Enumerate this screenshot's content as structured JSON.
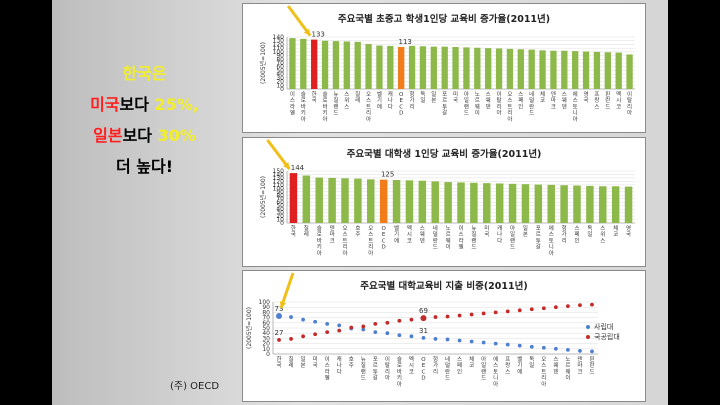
{
  "headline": {
    "line1": "한국은",
    "line2_a": "미국",
    "line2_b": "보다 ",
    "line2_c": "25%,",
    "line3_a": "일본",
    "line3_b": "보다 ",
    "line3_c": "30%",
    "line4": "더 높다!"
  },
  "source": "(주) OECD",
  "colors": {
    "bar": "#8db84a",
    "korea": "#e02020",
    "oecd": "#f07c1a",
    "private": "#4f7fd0",
    "public": "#c42a2a",
    "arrow": "#f0c018"
  },
  "chart_data": [
    {
      "type": "bar",
      "title": "주요국별 초중고 학생1인당 교육비 증가율(2011년)",
      "ylabel": "(2005년=100)",
      "ylim": [
        0,
        140
      ],
      "yticks": [
        0,
        10,
        20,
        30,
        40,
        50,
        60,
        70,
        80,
        90,
        100,
        110,
        120,
        130,
        140
      ],
      "categories": [
        "이스라엘",
        "슬로바키아",
        "한국",
        "슬로바키아",
        "뉴질랜드",
        "스위스",
        "칠레",
        "오스트리아",
        "벨기에",
        "캐나다",
        "OECD",
        "헝가리",
        "독일",
        "일본",
        "포르투갈",
        "미국",
        "아일랜드",
        "노르웨이",
        "스웨덴",
        "이탈리아",
        "오스트리아",
        "스페인",
        "네덜란드",
        "체코",
        "덴마크",
        "스웨덴",
        "에스토니아",
        "영국",
        "프랑스",
        "핀란드",
        "멕시코",
        "이탈리아"
      ],
      "values": [
        137,
        135,
        133,
        130,
        129,
        128,
        127,
        121,
        117,
        116,
        113,
        116,
        115,
        114,
        114,
        113,
        112,
        111,
        110,
        109,
        108,
        107,
        106,
        104,
        103,
        103,
        102,
        101,
        100,
        99,
        98,
        93
      ],
      "highlight": {
        "korea": 2,
        "oecd": 10
      },
      "data_labels": [
        {
          "index": 2,
          "text": "133"
        },
        {
          "index": 10,
          "text": "113"
        }
      ]
    },
    {
      "type": "bar",
      "title": "주요국별 대학생 1인당 교육비 증가율(2011년)",
      "ylabel": "(2005년=100)",
      "ylim": [
        0,
        150
      ],
      "yticks": [
        0,
        10,
        20,
        30,
        40,
        50,
        60,
        70,
        80,
        90,
        100,
        110,
        120,
        130,
        140,
        150
      ],
      "categories": [
        "한국",
        "칠레",
        "슬로바키아",
        "덴마크",
        "오스트리아",
        "호주",
        "오스트리아",
        "OECD",
        "벨기에",
        "멕시코",
        "스웨덴",
        "네덜란드",
        "노르웨이",
        "이스라엘",
        "뉴질랜드",
        "미국",
        "캐나다",
        "아일랜드",
        "일본",
        "포르투갈",
        "에스토니아",
        "헝가리",
        "스페인",
        "독일",
        "스위스",
        "체코",
        "영국"
      ],
      "values": [
        144,
        137,
        131,
        130,
        129,
        128,
        126,
        125,
        124,
        123,
        122,
        120,
        118,
        117,
        116,
        115,
        114,
        113,
        112,
        111,
        110,
        109,
        108,
        107,
        106,
        106,
        105
      ],
      "highlight": {
        "korea": 0,
        "oecd": 7
      },
      "data_labels": [
        {
          "index": 0,
          "text": "144"
        },
        {
          "index": 7,
          "text": "125"
        }
      ]
    },
    {
      "type": "scatter",
      "title": "주요국별 대학교육비 지출 비중(2011년)",
      "ylabel": "(2005년=100)",
      "ylim": [
        0,
        100
      ],
      "yticks": [
        0,
        10,
        20,
        30,
        40,
        50,
        60,
        70,
        80,
        90,
        100
      ],
      "categories": [
        "한국",
        "칠레",
        "일본",
        "미국",
        "이스라엘",
        "캐나다",
        "호주",
        "뉴질랜드",
        "포르투갈",
        "이탈리아",
        "슬로바키아",
        "멕시코",
        "OECD",
        "헝가리",
        "네덜란드",
        "스페인",
        "체코",
        "아일랜드",
        "에스토니아",
        "프랑스",
        "벨기에",
        "독일",
        "오스트리아",
        "스웨덴",
        "노르웨이",
        "덴마크",
        "핀란드"
      ],
      "series": [
        {
          "name": "사립대",
          "values": [
            73,
            71,
            66,
            62,
            58,
            55,
            49,
            47,
            42,
            40,
            36,
            34,
            31,
            29,
            28,
            26,
            24,
            22,
            20,
            18,
            16,
            14,
            12,
            10,
            8,
            6,
            5
          ]
        },
        {
          "name": "국공립대",
          "values": [
            27,
            29,
            34,
            38,
            42,
            45,
            51,
            53,
            58,
            60,
            64,
            66,
            69,
            71,
            72,
            74,
            76,
            78,
            80,
            82,
            84,
            86,
            88,
            90,
            92,
            94,
            95
          ]
        }
      ],
      "legend": "right",
      "data_labels": [
        {
          "series": 0,
          "index": 0,
          "text": "73"
        },
        {
          "series": 1,
          "index": 0,
          "text": "27"
        },
        {
          "series": 1,
          "index": 12,
          "text": "69"
        },
        {
          "series": 0,
          "index": 12,
          "text": "31"
        }
      ]
    }
  ]
}
